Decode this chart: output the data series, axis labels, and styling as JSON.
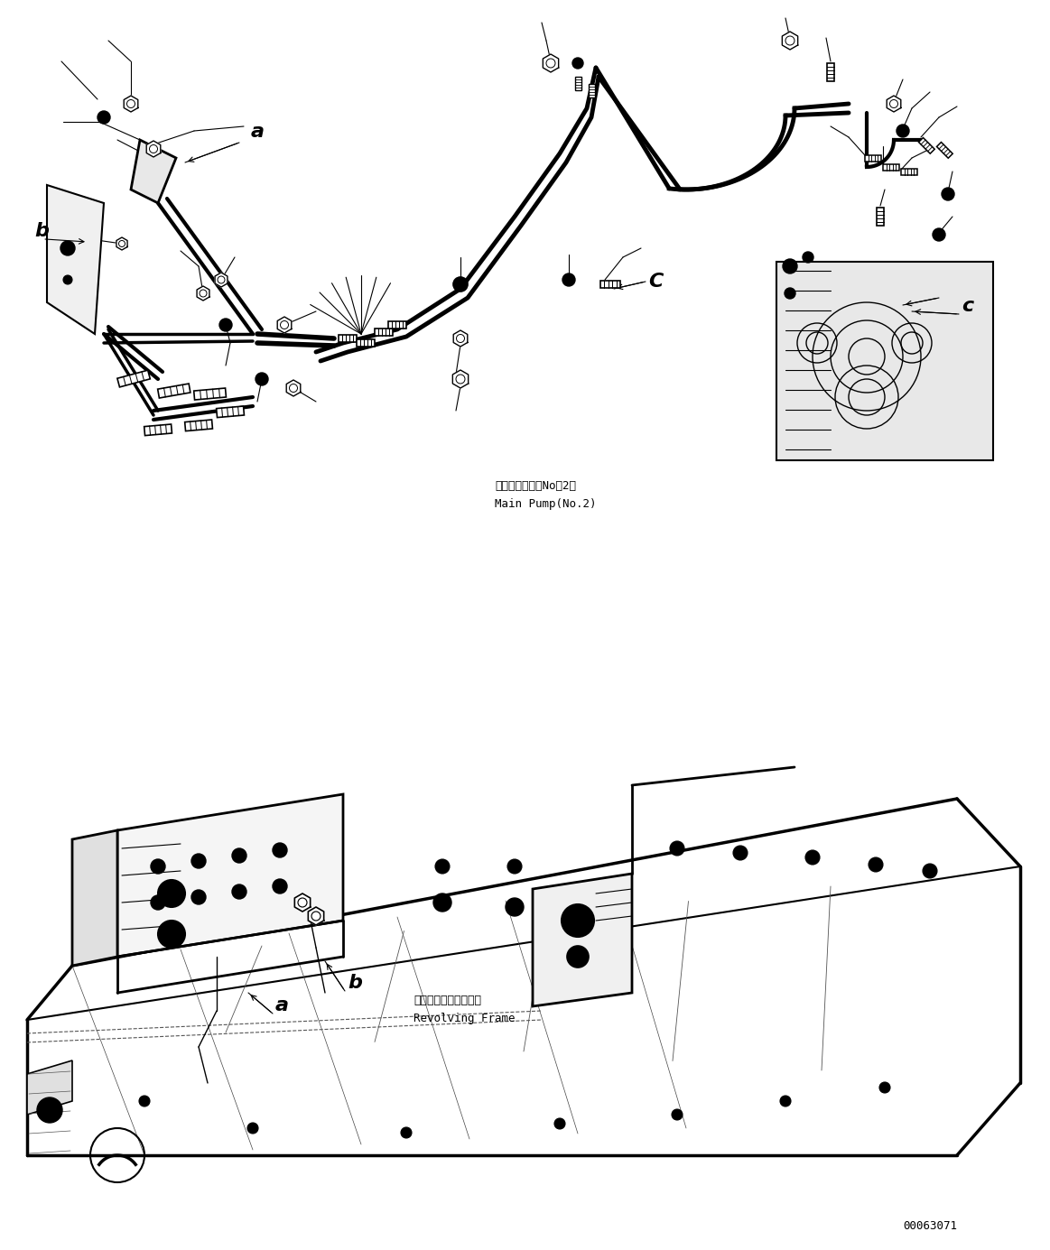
{
  "figure_width": 11.63,
  "figure_height": 13.85,
  "dpi": 100,
  "bg_color": "#ffffff",
  "lc": "#000000",
  "part_number": "00063071",
  "main_pump_jp": "メインポンプ（No．2）",
  "main_pump_en": "Main Pump(No.2)",
  "revolving_jp": "レボルビングフレーム",
  "revolving_en": "Revolving Frame"
}
